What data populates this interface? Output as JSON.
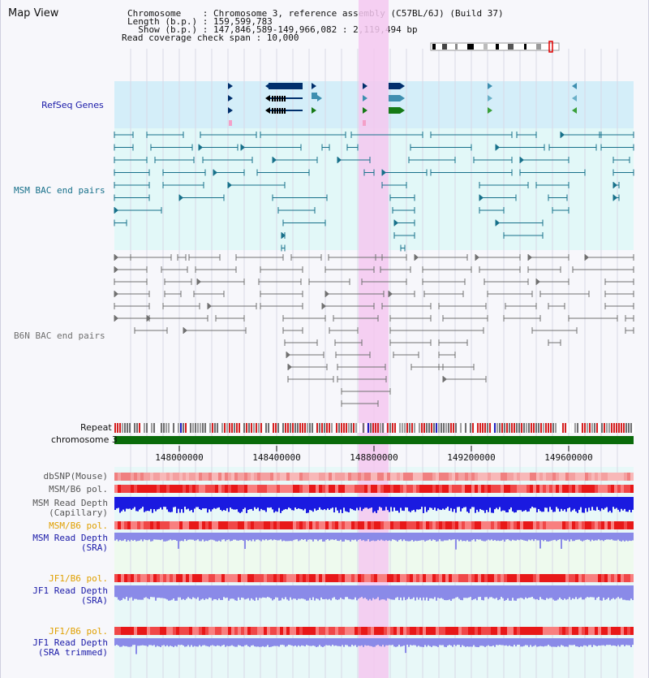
{
  "title": "Map View",
  "header": {
    "line1": "Chromosome    : Chromosome 3, reference assembly (C57BL/6J) (Build 37)",
    "line2": "Length (b.p.) : 159,599,783",
    "line3": "  Show (b.p.) : 147,846,589-149,966,082 : 2,119,494 bp",
    "line4": "Read coverage check span : 10,000"
  },
  "tracks": {
    "refseq_label": "RefSeq Genes",
    "msm_bac_label": "MSM BAC end pairs",
    "b6n_bac_label": "B6N BAC end pairs",
    "repeat_label": "Repeat",
    "chromosome_label": "chromosome 3",
    "dbsnp_label": "dbSNP(Mouse)",
    "msm_b6_pol_label": "MSM/B6 pol.",
    "msm_read_depth_cap_1": "MSM Read Depth",
    "msm_read_depth_cap_2": "(Capillary)",
    "msm_b6_pol_sra_label": "MSM/B6 pol.",
    "msm_read_depth_sra_1": "MSM Read Depth",
    "msm_read_depth_sra_2": "(SRA)",
    "jf1_b6_pol_label": "JF1/B6 pol.",
    "jf1_read_depth_sra_1": "JF1 Read Depth",
    "jf1_read_depth_sra_2": "(SRA)",
    "jf1_b6_pol_trim_label": "JF1/B6 pol.",
    "jf1_read_depth_trim_1": "JF1 Read Depth",
    "jf1_read_depth_trim_2": "(SRA trimmed)"
  },
  "axis": {
    "ticks": [
      "148000000",
      "148400000",
      "148800000",
      "149200000",
      "149600000"
    ]
  },
  "colors": {
    "highlight": "#f5c8f0",
    "refseq_bg": "#d4eef9",
    "bac_bg": "#e2f8f8",
    "gene_dark": "#002f6c",
    "gene_teal": "#3e8fb0",
    "gene_green": "#167a16",
    "msm_bac": "#17708a",
    "b6n_bac": "#707070",
    "chromosome": "#0a6b0a",
    "snp_red": "#e83a3a",
    "depth_blue": "#1a1ae0",
    "depth_light": "#8a8ae8",
    "label_blue": "#1a1aa8",
    "label_teal": "#17708a",
    "label_orange": "#e0a000"
  }
}
